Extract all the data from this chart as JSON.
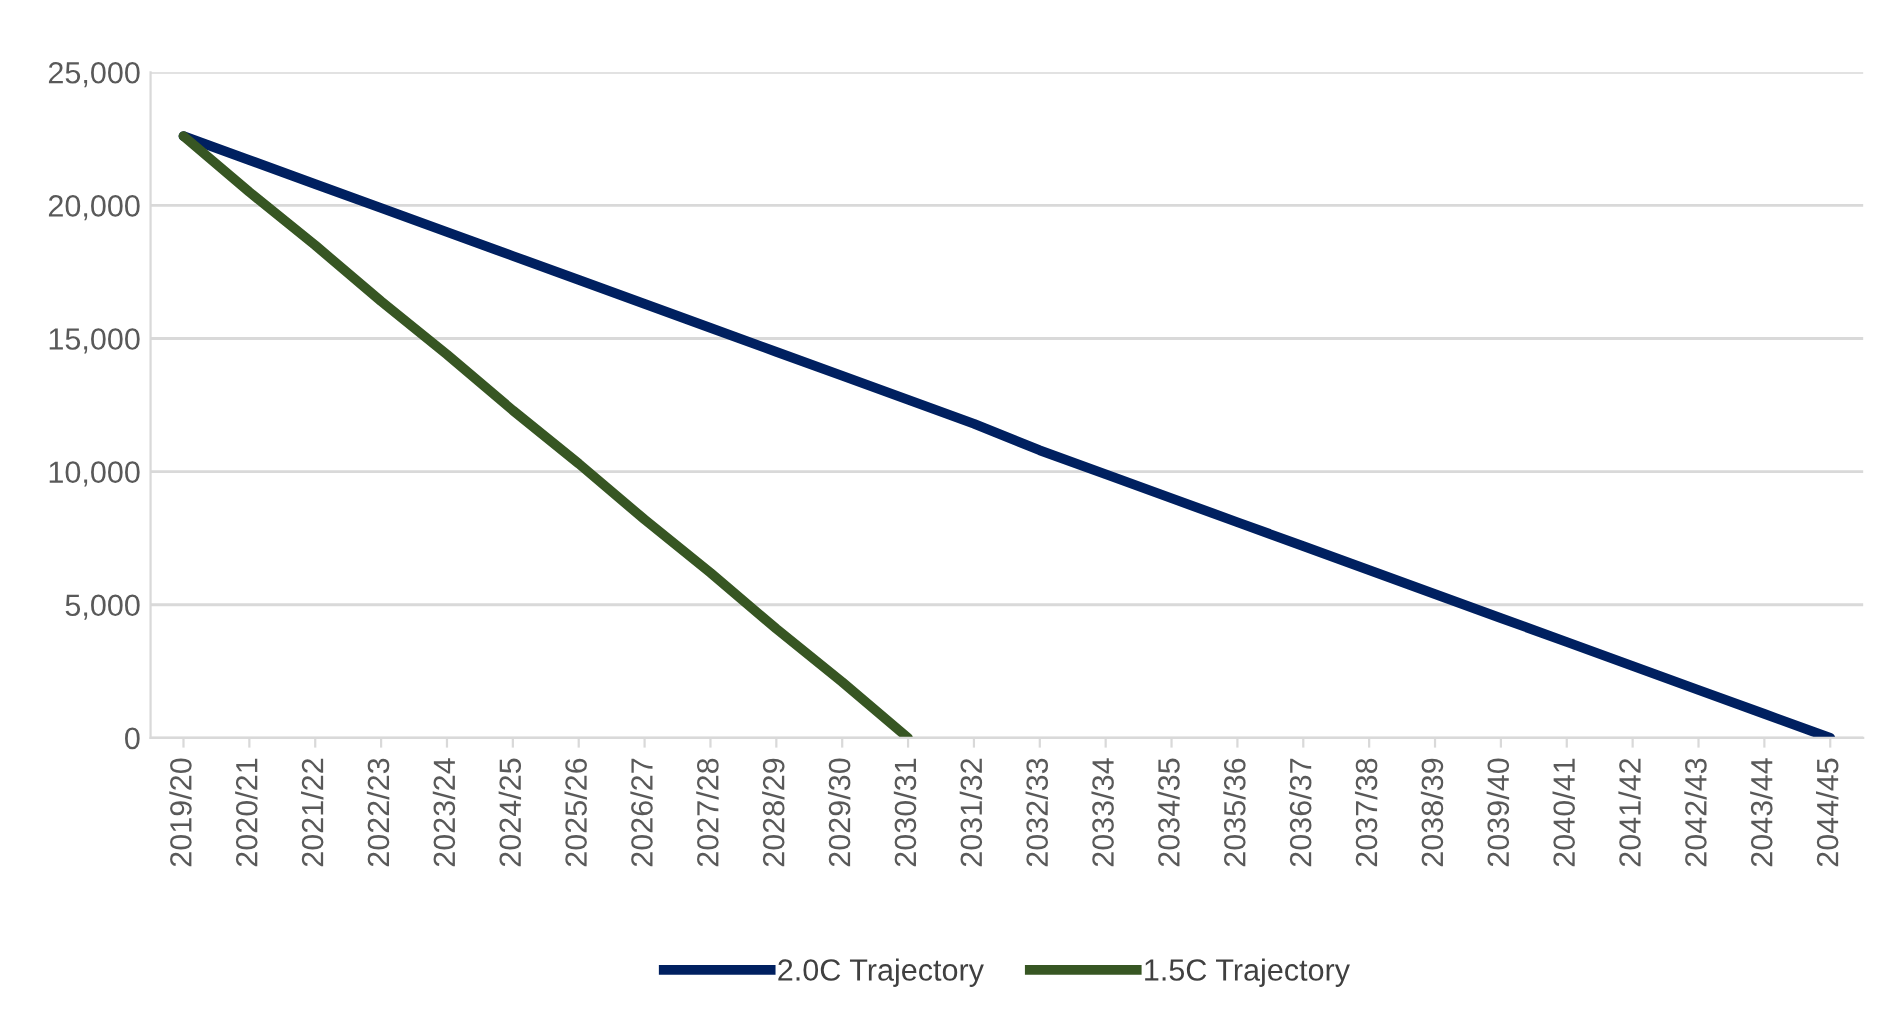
{
  "chart_data": {
    "type": "line",
    "categories": [
      "2019/20",
      "2020/21",
      "2021/22",
      "2022/23",
      "2023/24",
      "2024/25",
      "2025/26",
      "2026/27",
      "2027/28",
      "2028/29",
      "2029/30",
      "2030/31",
      "2031/32",
      "2032/33",
      "2033/34",
      "2034/35",
      "2035/36",
      "2036/37",
      "2037/38",
      "2038/39",
      "2039/40",
      "2040/41",
      "2041/42",
      "2042/43",
      "2043/44",
      "2044/45"
    ],
    "series": [
      {
        "name": "2.0C Trajectory",
        "color": "#002060",
        "values": [
          22600,
          21700,
          20800,
          19900,
          19000,
          18100,
          17200,
          16300,
          15400,
          14500,
          13600,
          12700,
          11800,
          10800,
          9900,
          9000,
          8100,
          7200,
          6300,
          5400,
          4500,
          3600,
          2700,
          1800,
          900,
          0
        ]
      },
      {
        "name": "1.5C Trajectory",
        "color": "#375623",
        "values": [
          22600,
          20500,
          18500,
          16400,
          14400,
          12300,
          10300,
          8200,
          6200,
          4100,
          2100,
          0,
          null,
          null,
          null,
          null,
          null,
          null,
          null,
          null,
          null,
          null,
          null,
          null,
          null,
          null
        ]
      }
    ],
    "ylim": [
      0,
      25000
    ],
    "yticks": [
      {
        "value": 0,
        "label": "0"
      },
      {
        "value": 5000,
        "label": "5,000"
      },
      {
        "value": 10000,
        "label": "10,000"
      },
      {
        "value": 15000,
        "label": "15,000"
      },
      {
        "value": 20000,
        "label": "20,000"
      },
      {
        "value": 25000,
        "label": "25,000"
      }
    ],
    "grid": "y",
    "legend": "bottom",
    "marker": "none",
    "line_style": "solid"
  }
}
